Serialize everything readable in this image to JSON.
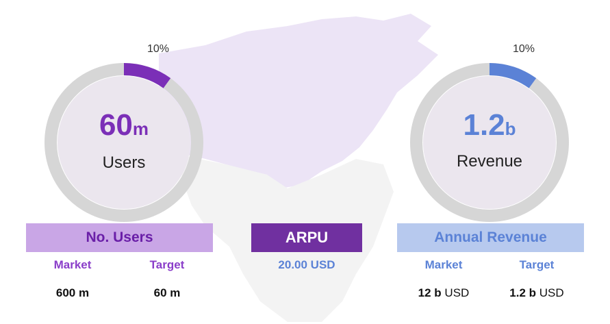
{
  "users_kpi": {
    "value_number": "60",
    "value_unit": "m",
    "label": "Users",
    "percent_label": "10%",
    "percent": 10,
    "color": "#7b2fb7"
  },
  "revenue_kpi": {
    "value_number": "1.2",
    "value_unit": "b",
    "label": "Revenue",
    "percent_label": "10%",
    "percent": 10,
    "color": "#5b82d6"
  },
  "users_box": {
    "title": "No. Users",
    "market_label": "Market",
    "target_label": "Target",
    "market_value": "600 m",
    "target_value": "60 m"
  },
  "arpu_box": {
    "title": "ARPU",
    "value": "20.00 USD"
  },
  "revenue_box": {
    "title": "Annual Revenue",
    "market_label": "Market",
    "target_label": "Target",
    "market_value_bold": "12 b",
    "market_value_unit": "USD",
    "target_value_bold": "1.2 b",
    "target_value_unit": "USD"
  },
  "colors": {
    "purple": "#7b2fb7",
    "purple_light": "#c9a6e6",
    "arpu_bg": "#7030a0",
    "blue": "#5b82d6",
    "blue_light": "#b7c9ee",
    "ring_track": "#d6d6d6",
    "ring_fill": "#ebe6ee",
    "map_purple": "#ece4f6",
    "map_gray": "#f3f3f3"
  }
}
